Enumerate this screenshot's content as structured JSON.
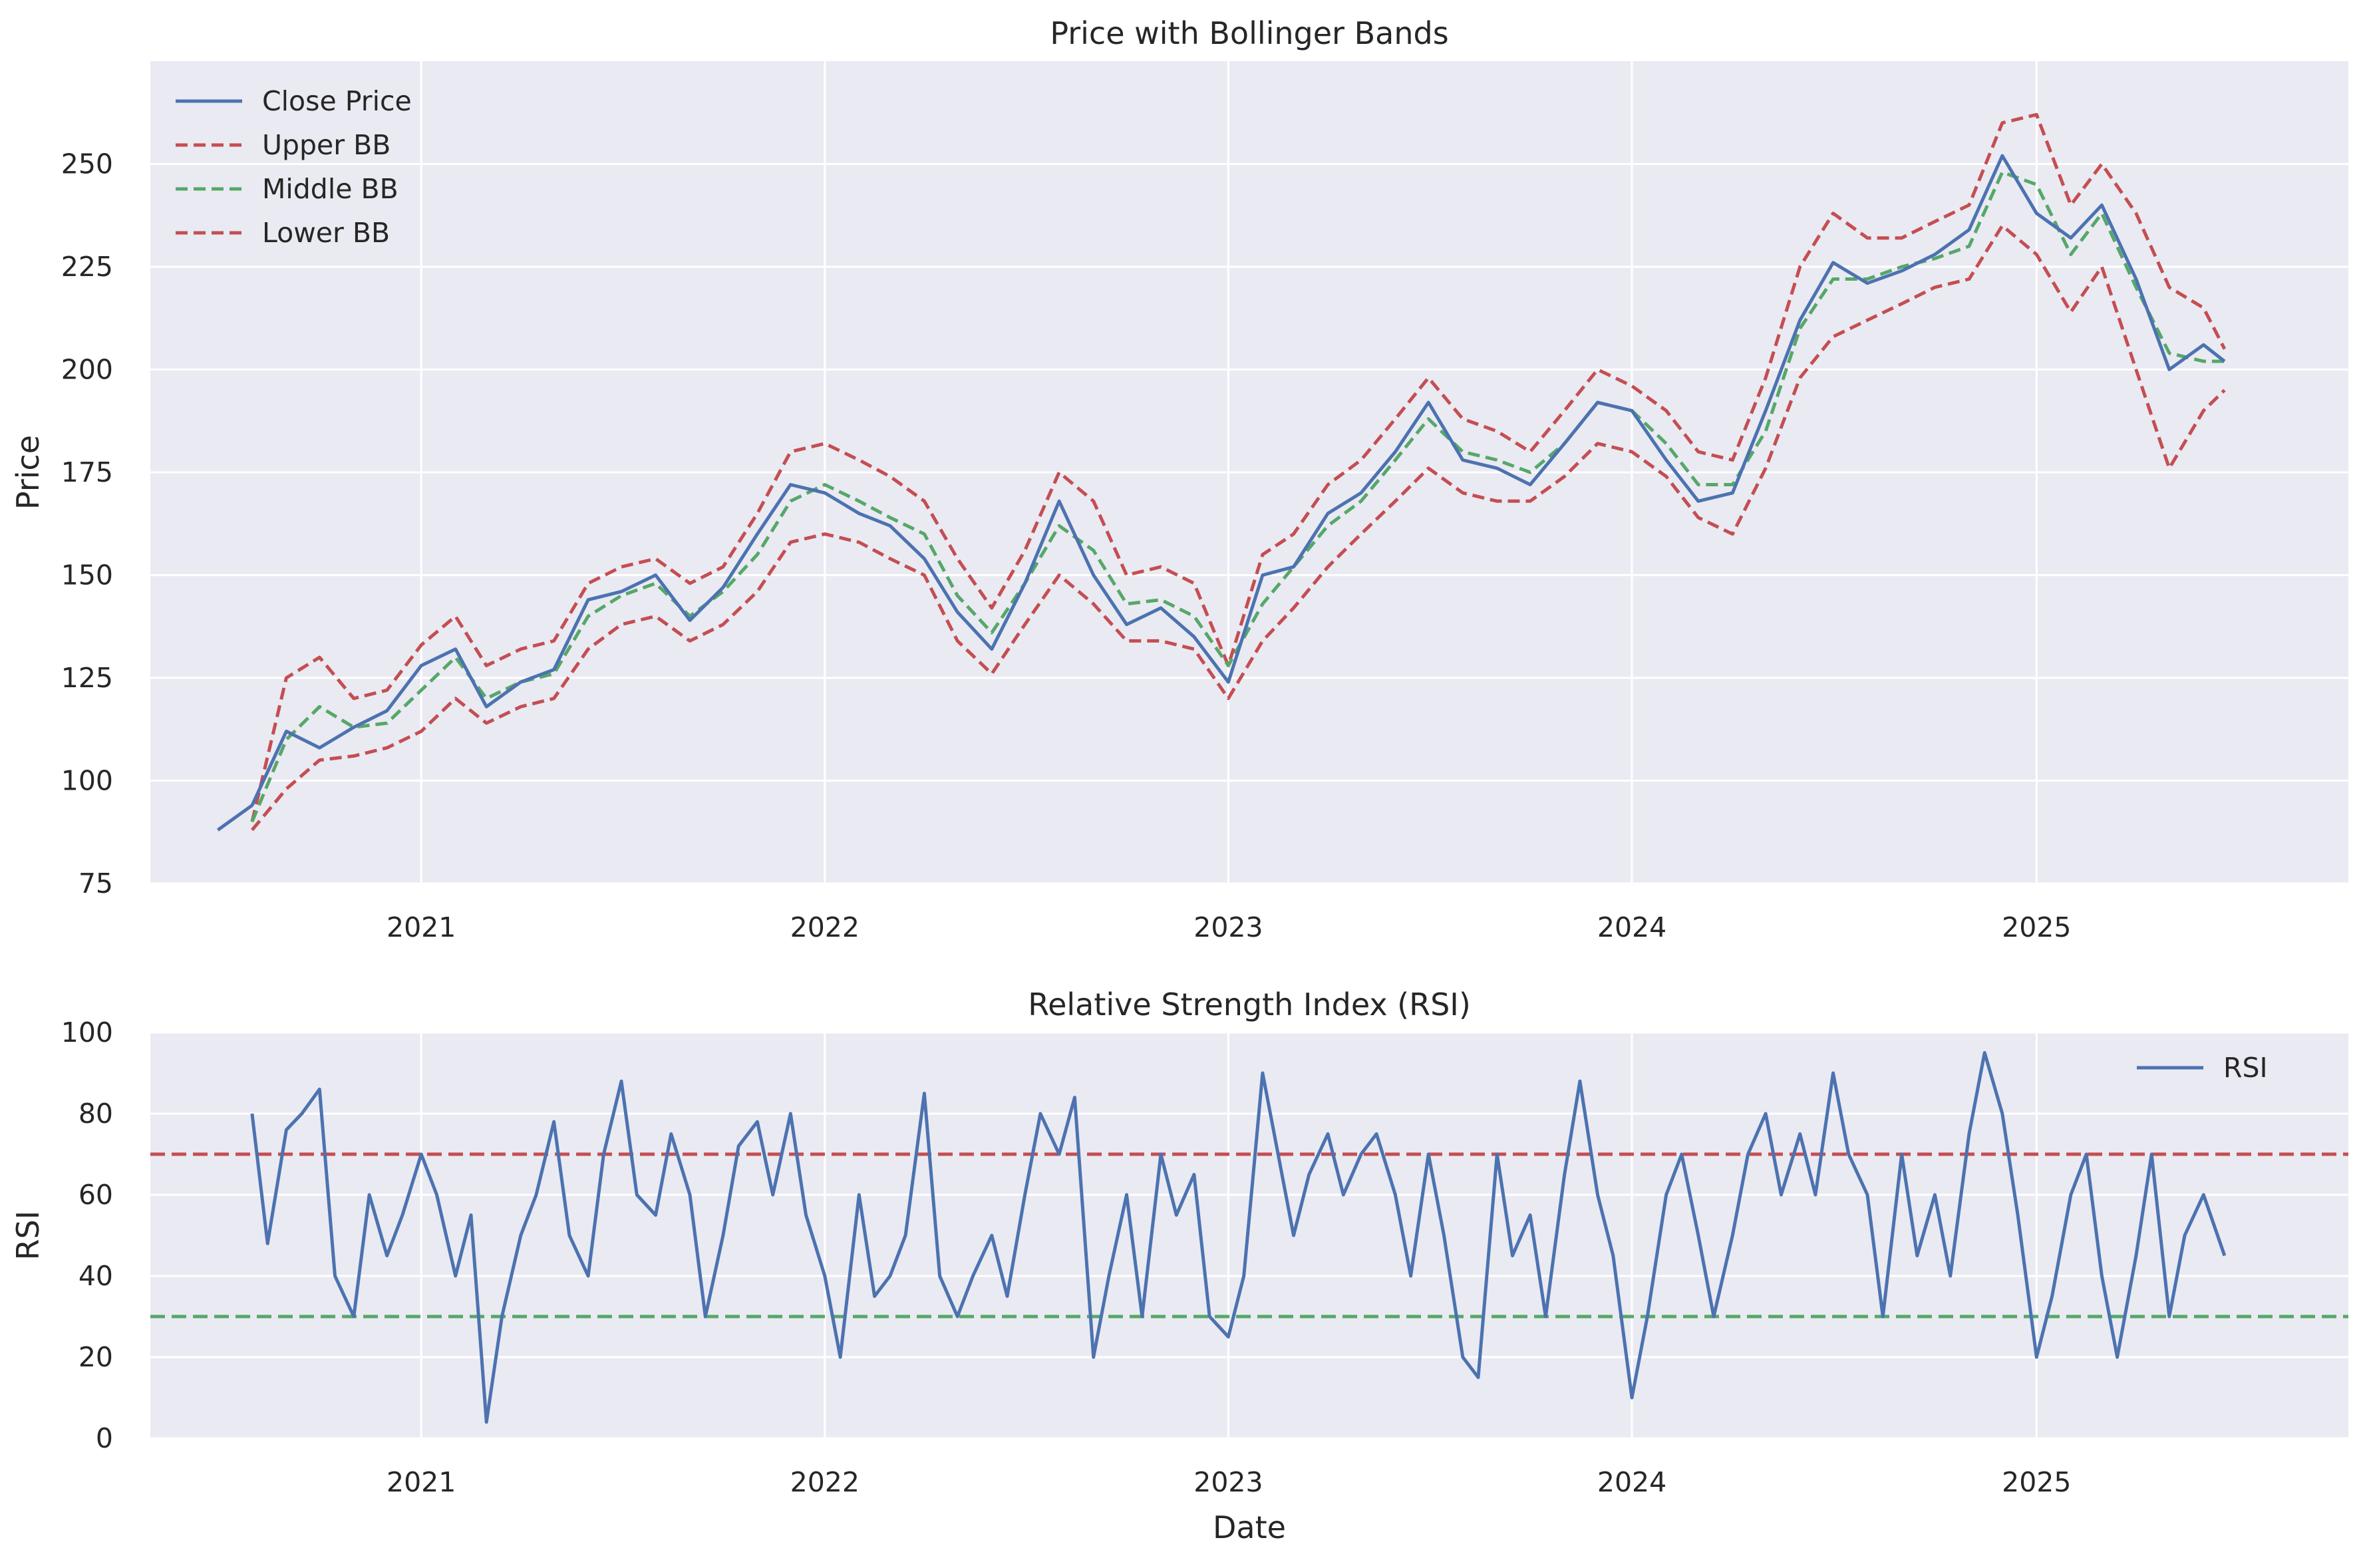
{
  "colors": {
    "background": "#eaeaf2",
    "grid": "#ffffff",
    "close": "#4c72b0",
    "upper": "#c44e52",
    "middle": "#55a868",
    "lower": "#c44e52",
    "rsi": "#4c72b0",
    "overbought": "#c44e52",
    "oversold": "#55a868"
  },
  "chart_data": [
    {
      "type": "line",
      "title": "Price with Bollinger Bands",
      "xlabel": "",
      "ylabel": "Price",
      "x_ticks": [
        "2021",
        "2022",
        "2023",
        "2024",
        "2025"
      ],
      "y_ticks": [
        75,
        100,
        125,
        150,
        175,
        200,
        225,
        250
      ],
      "xlim": [
        "2020-05-01",
        "2025-10-10"
      ],
      "ylim": [
        75,
        275
      ],
      "grid": true,
      "legend_position": "top-left",
      "x": [
        "2020-07-01",
        "2020-08-01",
        "2020-09-01",
        "2020-10-01",
        "2020-11-01",
        "2020-12-01",
        "2021-01-01",
        "2021-02-01",
        "2021-03-01",
        "2021-04-01",
        "2021-05-01",
        "2021-06-01",
        "2021-07-01",
        "2021-08-01",
        "2021-09-01",
        "2021-10-01",
        "2021-11-01",
        "2021-12-01",
        "2022-01-01",
        "2022-02-01",
        "2022-03-01",
        "2022-04-01",
        "2022-05-01",
        "2022-06-01",
        "2022-07-01",
        "2022-08-01",
        "2022-09-01",
        "2022-10-01",
        "2022-11-01",
        "2022-12-01",
        "2023-01-01",
        "2023-02-01",
        "2023-03-01",
        "2023-04-01",
        "2023-05-01",
        "2023-06-01",
        "2023-07-01",
        "2023-08-01",
        "2023-09-01",
        "2023-10-01",
        "2023-11-01",
        "2023-12-01",
        "2024-01-01",
        "2024-02-01",
        "2024-03-01",
        "2024-04-01",
        "2024-05-01",
        "2024-06-01",
        "2024-07-01",
        "2024-08-01",
        "2024-09-01",
        "2024-10-01",
        "2024-11-01",
        "2024-12-01",
        "2025-01-01",
        "2025-02-01",
        "2025-03-01",
        "2025-04-01",
        "2025-05-01",
        "2025-06-01",
        "2025-06-20"
      ],
      "series": [
        {
          "name": "Close Price",
          "style": "solid",
          "values": [
            88,
            94,
            112,
            108,
            113,
            117,
            128,
            132,
            118,
            124,
            127,
            144,
            146,
            150,
            139,
            147,
            160,
            172,
            170,
            165,
            162,
            154,
            141,
            132,
            148,
            168,
            150,
            138,
            142,
            135,
            124,
            150,
            152,
            165,
            170,
            180,
            192,
            178,
            176,
            172,
            182,
            192,
            190,
            178,
            168,
            170,
            190,
            212,
            226,
            221,
            224,
            228,
            234,
            252,
            238,
            232,
            240,
            222,
            200,
            206,
            202
          ],
          "start_index": 0
        },
        {
          "name": "Upper BB",
          "style": "dashed",
          "values": [
            null,
            90,
            125,
            130,
            120,
            122,
            133,
            140,
            128,
            132,
            134,
            148,
            152,
            154,
            148,
            152,
            165,
            180,
            182,
            178,
            174,
            168,
            154,
            142,
            156,
            175,
            168,
            150,
            152,
            148,
            128,
            155,
            160,
            172,
            178,
            188,
            198,
            188,
            185,
            180,
            190,
            200,
            196,
            190,
            180,
            178,
            198,
            225,
            238,
            232,
            232,
            236,
            240,
            260,
            262,
            240,
            250,
            238,
            220,
            215,
            205
          ]
        },
        {
          "name": "Middle BB",
          "style": "dashed",
          "values": [
            null,
            90,
            110,
            118,
            113,
            114,
            122,
            130,
            120,
            124,
            126,
            140,
            145,
            148,
            140,
            146,
            155,
            168,
            172,
            168,
            164,
            160,
            145,
            136,
            148,
            162,
            156,
            143,
            144,
            140,
            128,
            143,
            152,
            162,
            168,
            178,
            188,
            180,
            178,
            175,
            182,
            192,
            190,
            182,
            172,
            172,
            185,
            210,
            222,
            222,
            225,
            227,
            230,
            248,
            245,
            228,
            238,
            220,
            204,
            202,
            202
          ]
        },
        {
          "name": "Lower BB",
          "style": "dashed",
          "values": [
            null,
            88,
            98,
            105,
            106,
            108,
            112,
            120,
            114,
            118,
            120,
            132,
            138,
            140,
            134,
            138,
            146,
            158,
            160,
            158,
            154,
            150,
            134,
            126,
            138,
            150,
            143,
            134,
            134,
            132,
            120,
            134,
            142,
            152,
            160,
            168,
            176,
            170,
            168,
            168,
            174,
            182,
            180,
            174,
            164,
            160,
            176,
            198,
            208,
            212,
            216,
            220,
            222,
            235,
            228,
            214,
            225,
            200,
            176,
            190,
            195
          ]
        }
      ]
    },
    {
      "type": "line",
      "title": "Relative Strength Index (RSI)",
      "xlabel": "Date",
      "ylabel": "RSI",
      "x_ticks": [
        "2021",
        "2022",
        "2023",
        "2024",
        "2025"
      ],
      "y_ticks": [
        0,
        20,
        40,
        60,
        80,
        100
      ],
      "xlim": [
        "2020-05-01",
        "2025-10-10"
      ],
      "ylim": [
        0,
        100
      ],
      "grid": true,
      "legend_position": "top-right",
      "reference_lines": [
        {
          "y": 70,
          "color": "red",
          "style": "dashed"
        },
        {
          "y": 30,
          "color": "green",
          "style": "dashed"
        }
      ],
      "x": [
        "2020-08-01",
        "2020-08-15",
        "2020-09-01",
        "2020-09-15",
        "2020-10-01",
        "2020-10-15",
        "2020-11-01",
        "2020-11-15",
        "2020-12-01",
        "2020-12-15",
        "2021-01-01",
        "2021-01-15",
        "2021-02-01",
        "2021-02-15",
        "2021-03-01",
        "2021-03-15",
        "2021-04-01",
        "2021-04-15",
        "2021-05-01",
        "2021-05-15",
        "2021-06-01",
        "2021-06-15",
        "2021-07-01",
        "2021-07-15",
        "2021-08-01",
        "2021-08-15",
        "2021-09-01",
        "2021-09-15",
        "2021-10-01",
        "2021-10-15",
        "2021-11-01",
        "2021-11-15",
        "2021-12-01",
        "2021-12-15",
        "2022-01-01",
        "2022-01-15",
        "2022-02-01",
        "2022-02-15",
        "2022-03-01",
        "2022-03-15",
        "2022-04-01",
        "2022-04-15",
        "2022-05-01",
        "2022-05-15",
        "2022-06-01",
        "2022-06-15",
        "2022-07-01",
        "2022-07-15",
        "2022-08-01",
        "2022-08-15",
        "2022-09-01",
        "2022-09-15",
        "2022-10-01",
        "2022-10-15",
        "2022-11-01",
        "2022-11-15",
        "2022-12-01",
        "2022-12-15",
        "2023-01-01",
        "2023-01-15",
        "2023-02-01",
        "2023-02-15",
        "2023-03-01",
        "2023-03-15",
        "2023-04-01",
        "2023-04-15",
        "2023-05-01",
        "2023-05-15",
        "2023-06-01",
        "2023-06-15",
        "2023-07-01",
        "2023-07-15",
        "2023-08-01",
        "2023-08-15",
        "2023-09-01",
        "2023-09-15",
        "2023-10-01",
        "2023-10-15",
        "2023-11-01",
        "2023-11-15",
        "2023-12-01",
        "2023-12-15",
        "2024-01-01",
        "2024-01-15",
        "2024-02-01",
        "2024-02-15",
        "2024-03-01",
        "2024-03-15",
        "2024-04-01",
        "2024-04-15",
        "2024-05-01",
        "2024-05-15",
        "2024-06-01",
        "2024-06-15",
        "2024-07-01",
        "2024-07-15",
        "2024-08-01",
        "2024-08-15",
        "2024-09-01",
        "2024-09-15",
        "2024-10-01",
        "2024-10-15",
        "2024-11-01",
        "2024-11-15",
        "2024-12-01",
        "2024-12-15",
        "2025-01-01",
        "2025-01-15",
        "2025-02-01",
        "2025-02-15",
        "2025-03-01",
        "2025-03-15",
        "2025-04-01",
        "2025-04-15",
        "2025-05-01",
        "2025-05-15",
        "2025-06-01",
        "2025-06-20"
      ],
      "series": [
        {
          "name": "RSI",
          "style": "solid",
          "values": [
            80,
            48,
            76,
            80,
            86,
            40,
            30,
            60,
            45,
            55,
            70,
            60,
            40,
            55,
            4,
            30,
            50,
            60,
            78,
            50,
            40,
            70,
            88,
            60,
            55,
            75,
            60,
            30,
            50,
            72,
            78,
            60,
            80,
            55,
            40,
            20,
            60,
            35,
            40,
            50,
            85,
            40,
            30,
            40,
            50,
            35,
            60,
            80,
            70,
            84,
            20,
            40,
            60,
            30,
            70,
            55,
            65,
            30,
            25,
            40,
            90,
            70,
            50,
            65,
            75,
            60,
            70,
            75,
            60,
            40,
            70,
            50,
            20,
            15,
            70,
            45,
            55,
            30,
            65,
            88,
            60,
            45,
            10,
            30,
            60,
            70,
            50,
            30,
            50,
            70,
            80,
            60,
            75,
            60,
            90,
            70,
            60,
            30,
            70,
            45,
            60,
            40,
            75,
            95,
            80,
            55,
            20,
            35,
            60,
            70,
            40,
            20,
            45,
            70,
            30,
            50,
            60,
            45
          ]
        }
      ]
    }
  ]
}
